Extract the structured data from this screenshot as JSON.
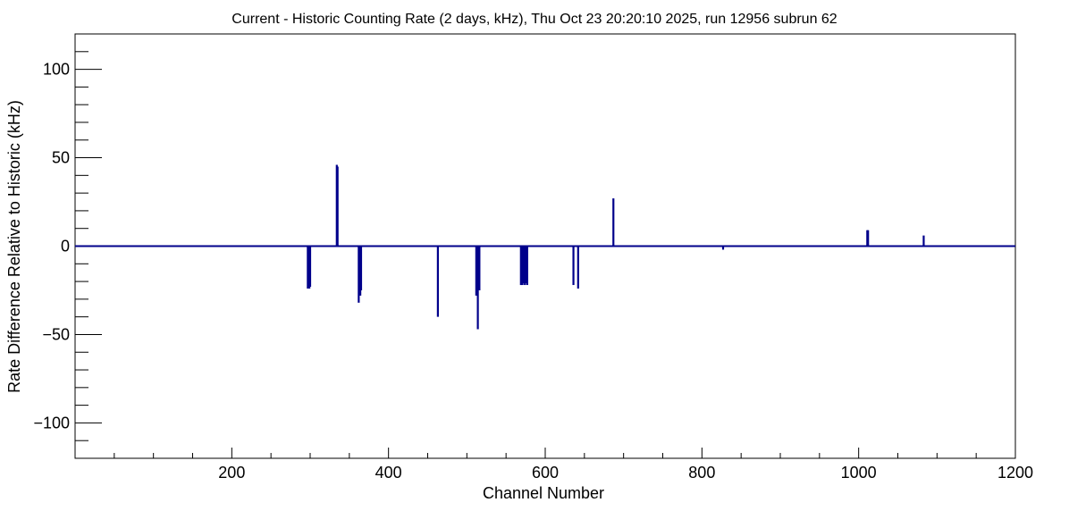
{
  "chart_data": {
    "type": "line",
    "title": "Current - Historic Counting Rate (2 days, kHz), Thu Oct 23 20:20:10 2025, run 12956 subrun 62",
    "xlabel": "Channel Number",
    "ylabel": "Rate Difference Relative to Historic (kHz)",
    "xlim": [
      0,
      1200
    ],
    "ylim": [
      -120,
      120
    ],
    "x_ticks": [
      200,
      400,
      600,
      800,
      1000,
      1200
    ],
    "x_tick_labels": [
      "200",
      "400",
      "600",
      "800",
      "1000",
      "1200"
    ],
    "y_ticks": [
      100,
      50,
      0,
      -50,
      -100
    ],
    "y_tick_labels": [
      "100",
      "50",
      "0",
      "−50",
      "−100"
    ],
    "series_color": "#00008b",
    "baseline": 0,
    "spikes": [
      {
        "x": 297,
        "y": -24
      },
      {
        "x": 299,
        "y": -24
      },
      {
        "x": 300,
        "y": -23
      },
      {
        "x": 334,
        "y": 46
      },
      {
        "x": 335,
        "y": 45
      },
      {
        "x": 362,
        "y": -32
      },
      {
        "x": 364,
        "y": -28
      },
      {
        "x": 365,
        "y": -25
      },
      {
        "x": 463,
        "y": -40
      },
      {
        "x": 512,
        "y": -28
      },
      {
        "x": 514,
        "y": -47
      },
      {
        "x": 516,
        "y": -25
      },
      {
        "x": 569,
        "y": -22
      },
      {
        "x": 571,
        "y": -22
      },
      {
        "x": 572,
        "y": -21
      },
      {
        "x": 574,
        "y": -22
      },
      {
        "x": 576,
        "y": -21
      },
      {
        "x": 577,
        "y": -22
      },
      {
        "x": 636,
        "y": -22
      },
      {
        "x": 642,
        "y": -24
      },
      {
        "x": 687,
        "y": 27
      },
      {
        "x": 1011,
        "y": 9
      },
      {
        "x": 1012,
        "y": 9
      },
      {
        "x": 1083,
        "y": 6
      },
      {
        "x": 827,
        "y": -2
      }
    ]
  }
}
